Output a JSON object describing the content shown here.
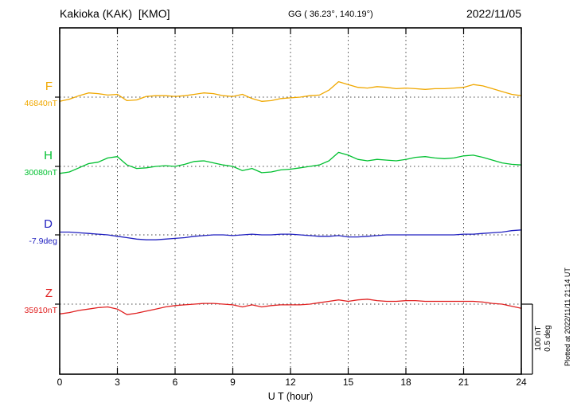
{
  "header": {
    "station_title": "Kakioka (KAK)  [KMO]",
    "gg_coords": "GG ( 36.23°, 140.19°)",
    "date": "2022/11/05"
  },
  "x_axis": {
    "label": "U T (hour)",
    "ticks": [
      "0",
      "3",
      "6",
      "9",
      "12",
      "15",
      "18",
      "21",
      "24"
    ]
  },
  "scale_bar": {
    "nt_label": "100 nT",
    "deg_label": "0.5 deg"
  },
  "plot_note": "Plotted at 2022/11/11 21:14 UT",
  "chart_data": {
    "type": "line",
    "title": "Kakioka (KAK) [KMO] magnetogram 2022/11/05",
    "xlabel": "U T (hour)",
    "x_range": [
      0,
      24
    ],
    "x_ticks": [
      0,
      3,
      6,
      9,
      12,
      15,
      18,
      21,
      24
    ],
    "grid": "dotted vertical lines every 3 h; dotted horizontal baseline per component",
    "scale": {
      "nT_per_div": 100,
      "deg_per_div": 0.5
    },
    "x": [
      0,
      0.5,
      1,
      1.5,
      2,
      2.5,
      3,
      3.5,
      4,
      4.5,
      5,
      5.5,
      6,
      6.5,
      7,
      7.5,
      8,
      8.5,
      9,
      9.5,
      10,
      10.5,
      11,
      11.5,
      12,
      12.5,
      13,
      13.5,
      14,
      14.5,
      15,
      15.5,
      16,
      16.5,
      17,
      17.5,
      18,
      18.5,
      19,
      19.5,
      20,
      20.5,
      21,
      21.5,
      22,
      22.5,
      23,
      23.5,
      24
    ],
    "series": [
      {
        "name": "F",
        "unit": "nT",
        "color": "#f0a800",
        "baseline_label": "46840nT",
        "baseline_value": 46840,
        "offsets": [
          -6,
          -3,
          2,
          6,
          5,
          3,
          4,
          -5,
          -4,
          1,
          2,
          2,
          1,
          2,
          4,
          6,
          5,
          2,
          1,
          4,
          -2,
          -6,
          -5,
          -2,
          -1,
          0,
          2,
          3,
          10,
          22,
          18,
          14,
          13,
          15,
          14,
          12,
          13,
          12,
          11,
          12,
          12,
          13,
          14,
          18,
          16,
          12,
          8,
          4,
          2
        ]
      },
      {
        "name": "H",
        "unit": "nT",
        "color": "#00c030",
        "baseline_label": "30080nT",
        "baseline_value": 30080,
        "offsets": [
          -10,
          -8,
          -2,
          4,
          6,
          12,
          14,
          2,
          -3,
          -2,
          0,
          1,
          0,
          3,
          7,
          8,
          5,
          2,
          0,
          -6,
          -3,
          -9,
          -8,
          -5,
          -4,
          -2,
          0,
          2,
          8,
          20,
          16,
          10,
          8,
          10,
          9,
          8,
          10,
          13,
          14,
          12,
          11,
          12,
          15,
          16,
          13,
          9,
          5,
          3,
          2
        ]
      },
      {
        "name": "D",
        "unit": "deg",
        "color": "#2020c0",
        "baseline_label": "-7.9deg",
        "baseline_value": -7.9,
        "offsets": [
          0.02,
          0.02,
          0.015,
          0.01,
          0.005,
          0,
          -0.01,
          -0.02,
          -0.03,
          -0.035,
          -0.035,
          -0.03,
          -0.025,
          -0.02,
          -0.01,
          -0.005,
          0,
          0,
          -0.005,
          0,
          0.005,
          0,
          0,
          0.005,
          0.005,
          0,
          -0.005,
          -0.01,
          -0.01,
          -0.005,
          -0.015,
          -0.015,
          -0.01,
          -0.005,
          0,
          0,
          0,
          0,
          0,
          0,
          0,
          0,
          0.005,
          0.005,
          0.01,
          0.015,
          0.02,
          0.03,
          0.035
        ]
      },
      {
        "name": "Z",
        "unit": "nT",
        "color": "#e02020",
        "baseline_label": "35910nT",
        "baseline_value": 35910,
        "offsets": [
          -14,
          -12,
          -9,
          -7,
          -5,
          -4,
          -7,
          -15,
          -13,
          -10,
          -7,
          -4,
          -2,
          -1,
          0,
          1,
          1,
          0,
          -1,
          -4,
          -1,
          -4,
          -2,
          -1,
          -1,
          -1,
          0,
          2,
          4,
          6,
          4,
          6,
          7,
          5,
          4,
          4,
          5,
          5,
          4,
          4,
          4,
          4,
          4,
          4,
          3,
          1,
          0,
          -3,
          -6
        ]
      }
    ]
  }
}
